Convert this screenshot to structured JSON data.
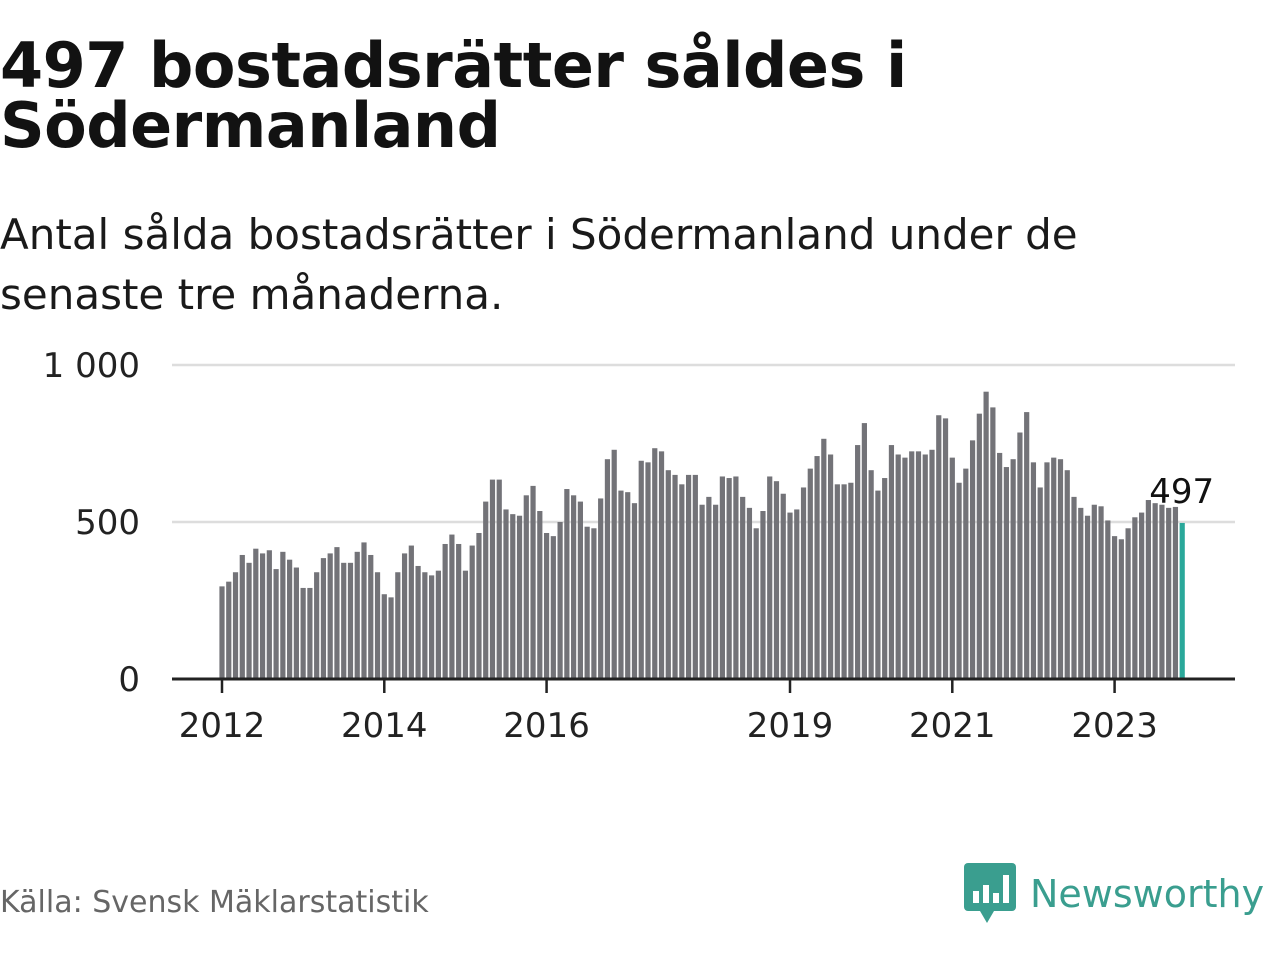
{
  "header": {
    "title": "497 bostadsrätter såldes i Södermanland",
    "subtitle": "Antal sålda bostadsrätter i Södermanland under de senaste tre månaderna."
  },
  "footer": {
    "source": "Källa: Svensk Mäklarstatistik",
    "brand": "Newsworthy"
  },
  "colors": {
    "bar": "#737378",
    "highlight": "#2aa89a",
    "grid": "#dddddd",
    "axis": "#222222",
    "brand": "#3a9e8f"
  },
  "chart_data": {
    "type": "bar",
    "title": "497 bostadsrätter såldes i Södermanland",
    "subtitle": "Antal sålda bostadsrätter i Södermanland under de senaste tre månaderna.",
    "x_start": "2012-01",
    "x_end": "2023-12",
    "x_ticks": [
      "2012",
      "2014",
      "2016",
      "2019",
      "2021",
      "2023"
    ],
    "y_ticks": [
      0,
      500,
      1000
    ],
    "y_tick_labels": [
      "0",
      "500",
      "1 000"
    ],
    "ylim": [
      0,
      1000
    ],
    "grid": true,
    "highlight_label": "497",
    "values": [
      295,
      310,
      340,
      395,
      370,
      415,
      400,
      410,
      350,
      405,
      380,
      355,
      290,
      290,
      340,
      385,
      400,
      420,
      370,
      370,
      405,
      435,
      395,
      340,
      270,
      260,
      340,
      400,
      425,
      360,
      340,
      330,
      345,
      430,
      460,
      430,
      345,
      425,
      465,
      565,
      635,
      635,
      540,
      525,
      520,
      585,
      615,
      535,
      465,
      455,
      500,
      605,
      585,
      565,
      485,
      480,
      575,
      700,
      730,
      600,
      595,
      560,
      695,
      690,
      735,
      725,
      665,
      650,
      620,
      650,
      650,
      555,
      580,
      555,
      645,
      640,
      645,
      580,
      545,
      480,
      535,
      645,
      630,
      590,
      530,
      540,
      610,
      670,
      710,
      765,
      715,
      620,
      620,
      625,
      745,
      815,
      665,
      600,
      640,
      745,
      715,
      705,
      725,
      725,
      715,
      730,
      840,
      830,
      705,
      625,
      670,
      760,
      845,
      915,
      865,
      720,
      675,
      700,
      785,
      850,
      690,
      610,
      690,
      705,
      700,
      665,
      580,
      545,
      520,
      555,
      550,
      505,
      455,
      445,
      480,
      515,
      530,
      570,
      560,
      555,
      545,
      548,
      497
    ]
  }
}
